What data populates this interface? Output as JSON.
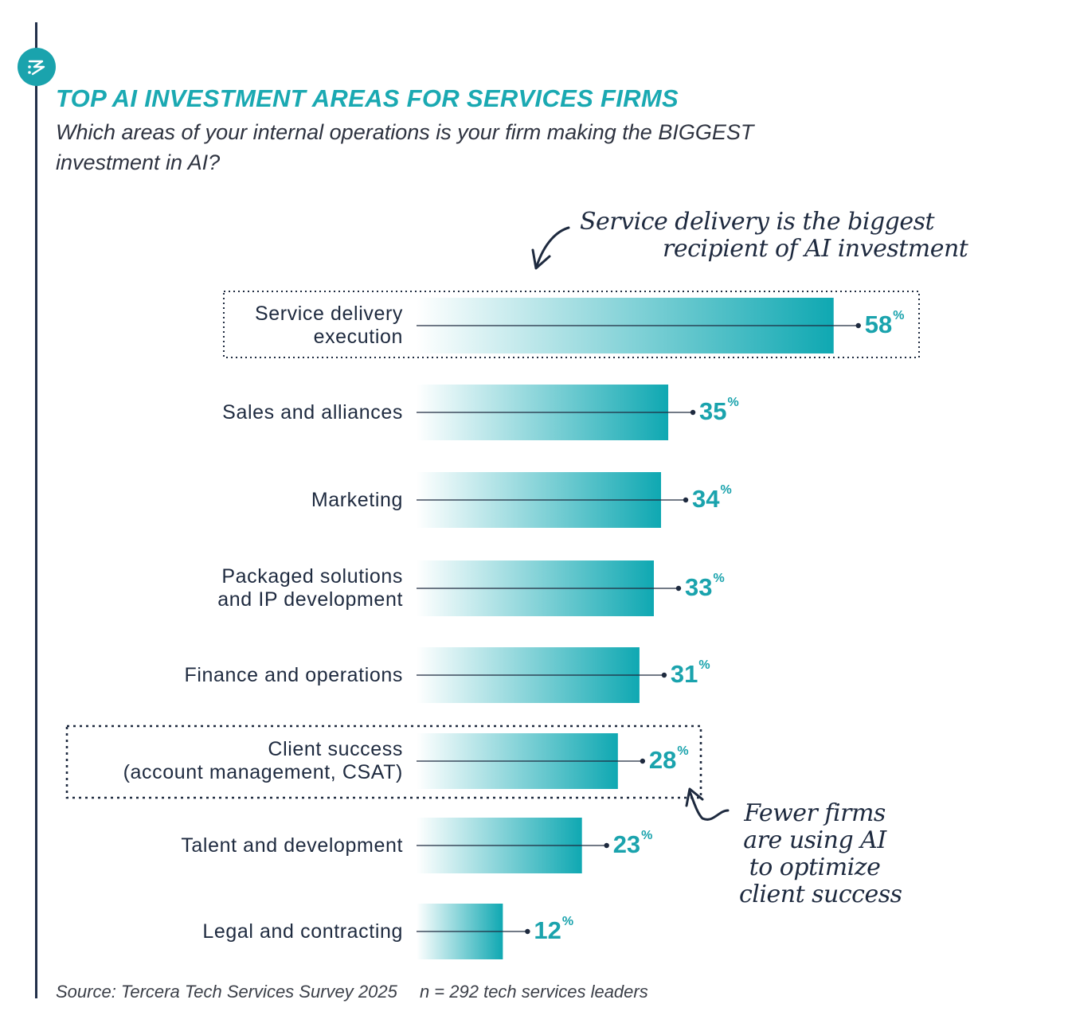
{
  "header": {
    "title": "TOP AI INVESTMENT AREAS FOR SERVICES FIRMS",
    "subtitle": "Which areas of your internal operations is your firm making the BIGGEST investment in AI?"
  },
  "colors": {
    "accent": "#1aa3ad",
    "text": "#1e2a3f",
    "bar_start": "#ffffff",
    "bar_end": "#0fa8b2"
  },
  "icons": {
    "logo": "tercera-logo-icon"
  },
  "chart_data": {
    "type": "bar",
    "orientation": "horizontal",
    "categories": [
      "Service delivery execution",
      "Sales and alliances",
      "Marketing",
      "Packaged solutions and IP development",
      "Finance and operations",
      "Client success (account management, CSAT)",
      "Talent and development",
      "Legal and contracting"
    ],
    "category_lines": [
      [
        "Service delivery",
        "execution"
      ],
      [
        "Sales and alliances"
      ],
      [
        "Marketing"
      ],
      [
        "Packaged solutions",
        "and IP development"
      ],
      [
        "Finance and operations"
      ],
      [
        "Client success",
        "(account management, CSAT)"
      ],
      [
        "Talent and development"
      ],
      [
        "Legal and contracting"
      ]
    ],
    "values": [
      58,
      35,
      34,
      33,
      31,
      28,
      23,
      12
    ],
    "value_labels": [
      "58",
      "35",
      "34",
      "33",
      "31",
      "28",
      "23",
      "12"
    ],
    "unit": "%",
    "highlighted": [
      "Service delivery execution",
      "Client success (account management, CSAT)"
    ],
    "annotations": [
      {
        "text_lines": [
          "Service delivery is the biggest",
          "recipient of AI investment"
        ],
        "target": "Service delivery execution"
      },
      {
        "text_lines": [
          "Fewer firms",
          "are using AI",
          "to optimize",
          "client success"
        ],
        "target": "Client success (account management, CSAT)"
      }
    ],
    "grid": false,
    "legend": "none"
  },
  "footer": {
    "source": "Source: Tercera Tech Services Survey 2025",
    "sample": "n = 292 tech services leaders"
  }
}
